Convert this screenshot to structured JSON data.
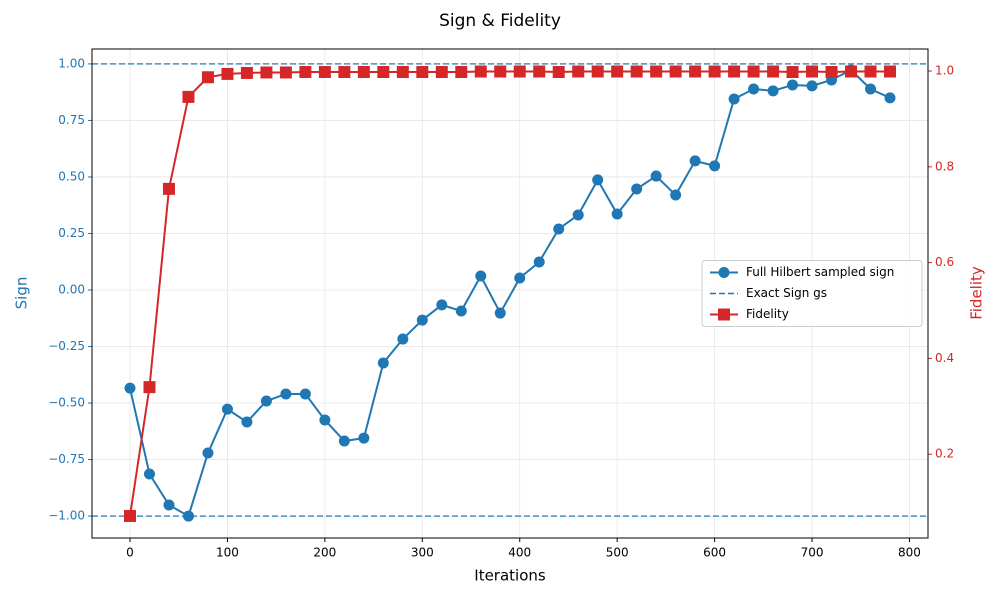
{
  "chart_data": {
    "type": "line",
    "title": "Sign & Fidelity",
    "xlabel": "Iterations",
    "ylabel": "Sign",
    "y2label": "Fidelity",
    "x": [
      0,
      20,
      40,
      60,
      80,
      100,
      120,
      140,
      160,
      180,
      200,
      220,
      240,
      260,
      280,
      300,
      320,
      340,
      360,
      380,
      400,
      420,
      440,
      460,
      480,
      500,
      520,
      540,
      560,
      580,
      600,
      620,
      640,
      660,
      680,
      700,
      720,
      740,
      760,
      780
    ],
    "series": [
      {
        "name": "Full Hilbert sampled sign",
        "color": "#1f77b4",
        "marker": "circle",
        "axis": "y",
        "values": [
          -0.434,
          -0.814,
          -0.951,
          -1.0,
          -0.721,
          -0.527,
          -0.584,
          -0.491,
          -0.46,
          -0.46,
          -0.575,
          -0.668,
          -0.655,
          -0.323,
          -0.217,
          -0.133,
          -0.066,
          -0.093,
          0.062,
          -0.102,
          0.053,
          0.124,
          0.27,
          0.332,
          0.487,
          0.336,
          0.447,
          0.504,
          0.42,
          0.571,
          0.549,
          0.845,
          0.889,
          0.881,
          0.907,
          0.903,
          0.929,
          0.973,
          0.889,
          0.85
        ]
      },
      {
        "name": "Fidelity",
        "color": "#d62728",
        "marker": "square",
        "axis": "y2",
        "values": [
          0.071,
          0.34,
          0.754,
          0.946,
          0.987,
          0.994,
          0.996,
          0.997,
          0.997,
          0.998,
          0.998,
          0.998,
          0.998,
          0.998,
          0.998,
          0.998,
          0.998,
          0.998,
          0.999,
          0.999,
          0.999,
          0.999,
          0.998,
          0.999,
          0.999,
          0.999,
          0.999,
          0.999,
          0.999,
          0.999,
          0.999,
          0.999,
          0.999,
          0.999,
          0.998,
          0.999,
          0.998,
          0.999,
          0.999,
          0.999
        ]
      }
    ],
    "hlines": {
      "name": "Exact Sign gs",
      "color": "#1f77b4",
      "values": [
        1,
        -1
      ]
    },
    "xlim": [
      -39,
      819
    ],
    "xticks": [
      0,
      100,
      200,
      300,
      400,
      500,
      600,
      700,
      800
    ],
    "ylim": [
      -1.097,
      1.066
    ],
    "yticks": [
      {
        "value": -1,
        "label": "−1.00"
      },
      {
        "value": -0.75,
        "label": "−0.75"
      },
      {
        "value": -0.5,
        "label": "−0.50"
      },
      {
        "value": -0.25,
        "label": "−0.25"
      },
      {
        "value": 0,
        "label": "0.00"
      },
      {
        "value": 0.25,
        "label": "0.25"
      },
      {
        "value": 0.5,
        "label": "0.50"
      },
      {
        "value": 0.75,
        "label": "0.75"
      },
      {
        "value": 1,
        "label": "1.00"
      }
    ],
    "y2lim": [
      0.025,
      1.046
    ],
    "y2ticks": [
      0.2,
      0.4,
      0.6,
      0.8,
      {
        "value": 1,
        "label": "1.0"
      }
    ],
    "grid": true,
    "legend": "center right"
  }
}
